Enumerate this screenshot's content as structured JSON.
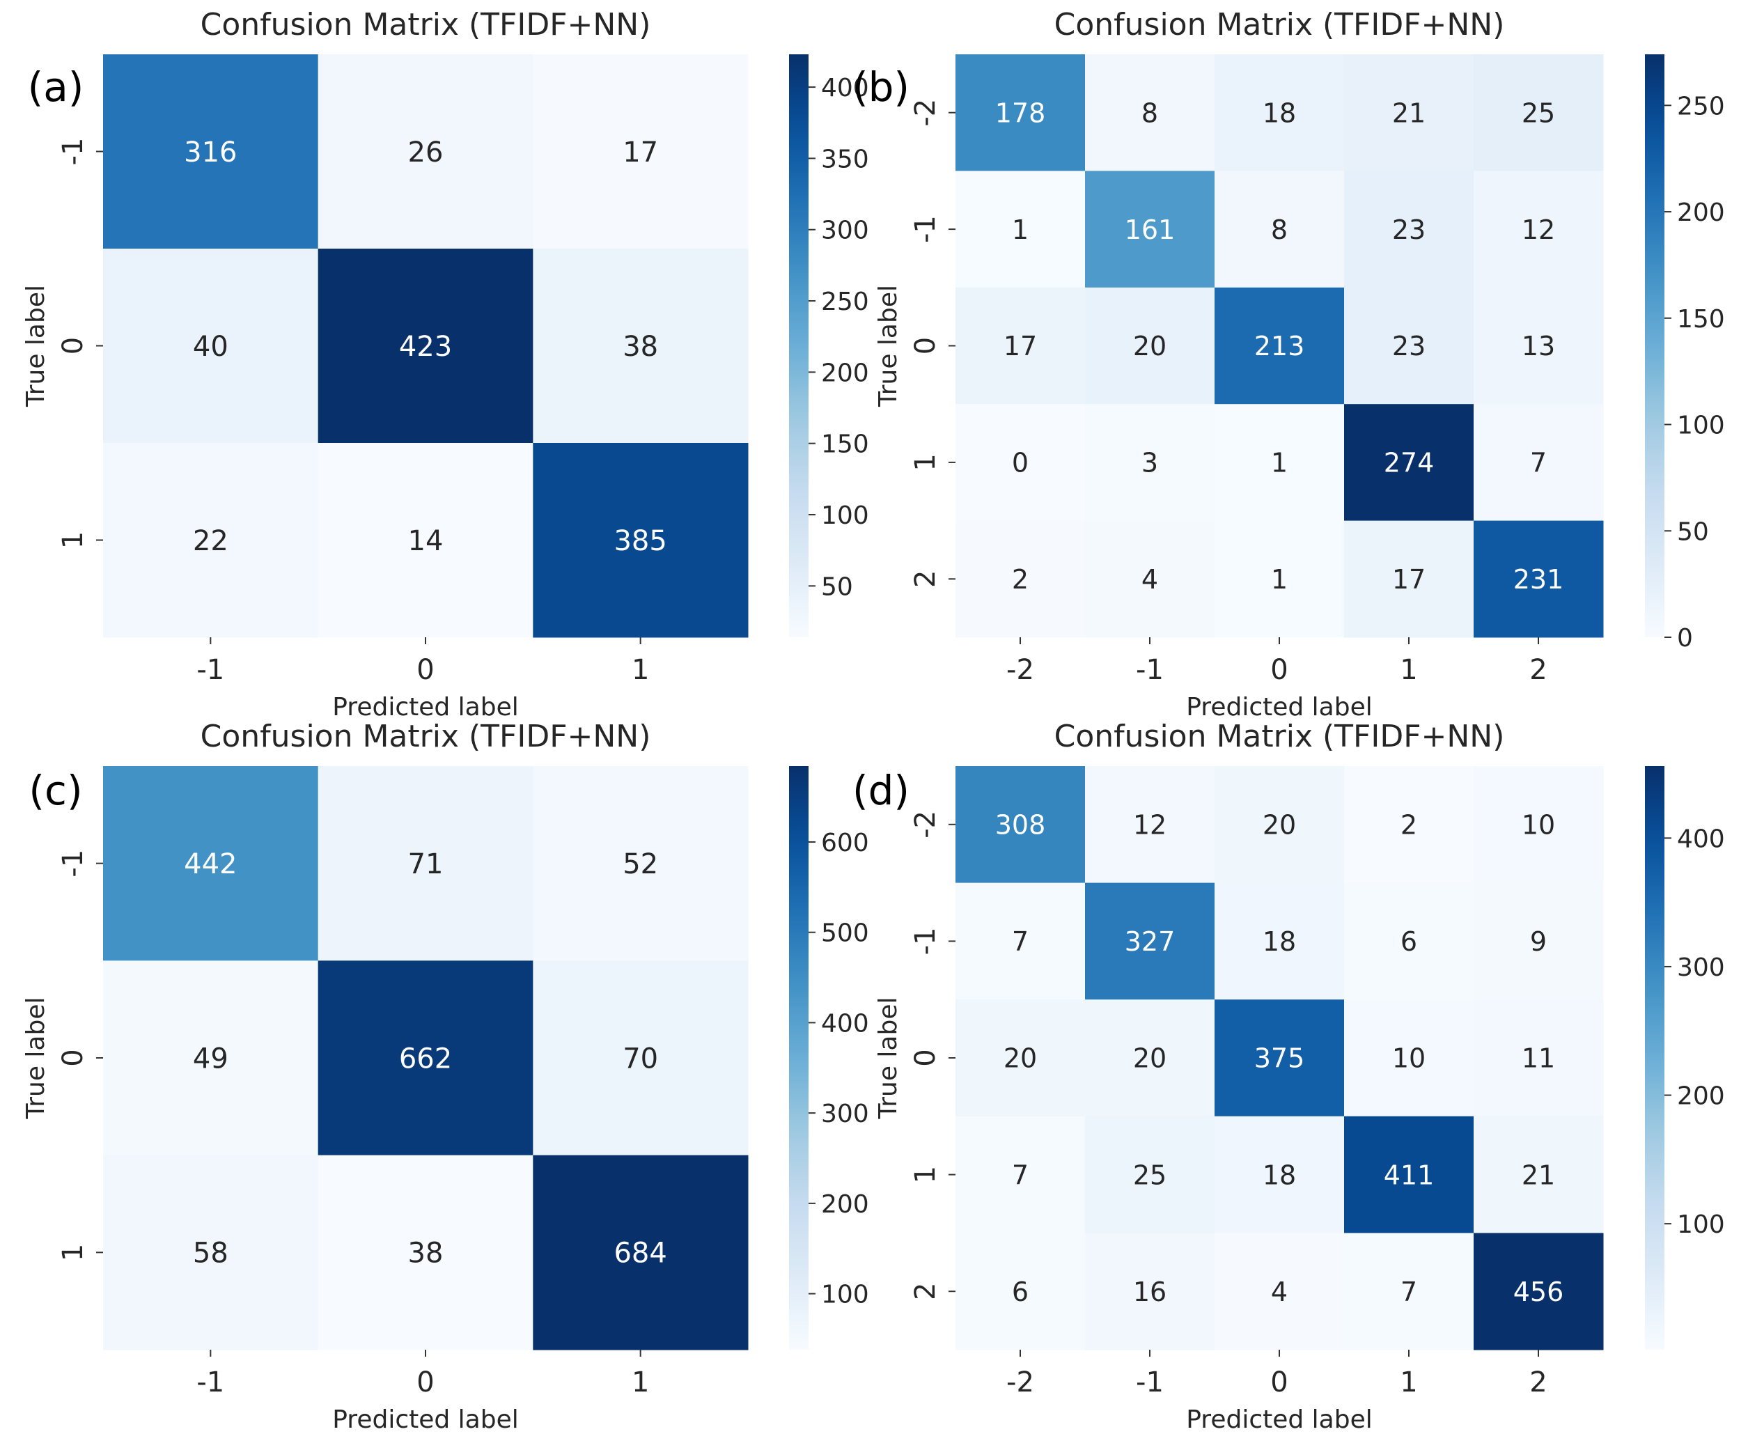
{
  "colormap": {
    "name": "Blues",
    "stops": [
      "#f7fbff",
      "#deebf7",
      "#c6dbef",
      "#9ecae1",
      "#6baed6",
      "#4292c6",
      "#2171b5",
      "#08519c",
      "#08306b"
    ],
    "text_light": "#ffffff",
    "text_dark": "#262626"
  },
  "chart_data": [
    {
      "type": "heatmap",
      "panel_label": "(a)",
      "title": "Confusion Matrix (TFIDF+NN)",
      "xlabel": "Predicted label",
      "ylabel": "True label",
      "x_categories": [
        "-1",
        "0",
        "1"
      ],
      "y_categories": [
        "-1",
        "0",
        "1"
      ],
      "values": [
        [
          316,
          26,
          17
        ],
        [
          40,
          423,
          38
        ],
        [
          22,
          14,
          385
        ]
      ],
      "colorbar": {
        "vmin": 14,
        "vmax": 423,
        "ticks": [
          50,
          100,
          150,
          200,
          250,
          300,
          350,
          400
        ],
        "tick_labels": [
          "50",
          "100",
          "150",
          "200",
          "250",
          "300",
          "350",
          "400"
        ]
      }
    },
    {
      "type": "heatmap",
      "panel_label": "(b)",
      "title": "Confusion Matrix (TFIDF+NN)",
      "xlabel": "Predicted label",
      "ylabel": "True label",
      "x_categories": [
        "-2",
        "-1",
        "0",
        "1",
        "2"
      ],
      "y_categories": [
        "-2",
        "-1",
        "0",
        "1",
        "2"
      ],
      "values": [
        [
          178,
          8,
          18,
          21,
          25
        ],
        [
          1,
          161,
          8,
          23,
          12
        ],
        [
          17,
          20,
          213,
          23,
          13
        ],
        [
          0,
          3,
          1,
          274,
          7
        ],
        [
          2,
          4,
          1,
          17,
          231
        ]
      ],
      "colorbar": {
        "vmin": 0,
        "vmax": 274,
        "ticks": [
          0,
          50,
          100,
          150,
          200,
          250
        ],
        "tick_labels": [
          "0",
          "50",
          "100",
          "150",
          "200",
          "250"
        ]
      }
    },
    {
      "type": "heatmap",
      "panel_label": "(c)",
      "title": "Confusion Matrix (TFIDF+NN)",
      "xlabel": "Predicted label",
      "ylabel": "True label",
      "x_categories": [
        "-1",
        "0",
        "1"
      ],
      "y_categories": [
        "-1",
        "0",
        "1"
      ],
      "values": [
        [
          442,
          71,
          52
        ],
        [
          49,
          662,
          70
        ],
        [
          58,
          38,
          684
        ]
      ],
      "colorbar": {
        "vmin": 38,
        "vmax": 684,
        "ticks": [
          100,
          200,
          300,
          400,
          500,
          600
        ],
        "tick_labels": [
          "100",
          "200",
          "300",
          "400",
          "500",
          "600"
        ]
      }
    },
    {
      "type": "heatmap",
      "panel_label": "(d)",
      "title": "Confusion Matrix (TFIDF+NN)",
      "xlabel": "Predicted label",
      "ylabel": "True label",
      "x_categories": [
        "-2",
        "-1",
        "0",
        "1",
        "2"
      ],
      "y_categories": [
        "-2",
        "-1",
        "0",
        "1",
        "2"
      ],
      "values": [
        [
          308,
          12,
          20,
          2,
          10
        ],
        [
          7,
          327,
          18,
          6,
          9
        ],
        [
          20,
          20,
          375,
          10,
          11
        ],
        [
          7,
          25,
          18,
          411,
          21
        ],
        [
          6,
          16,
          4,
          7,
          456
        ]
      ],
      "colorbar": {
        "vmin": 2,
        "vmax": 456,
        "ticks": [
          100,
          200,
          300,
          400
        ],
        "tick_labels": [
          "100",
          "200",
          "300",
          "400"
        ]
      }
    }
  ]
}
